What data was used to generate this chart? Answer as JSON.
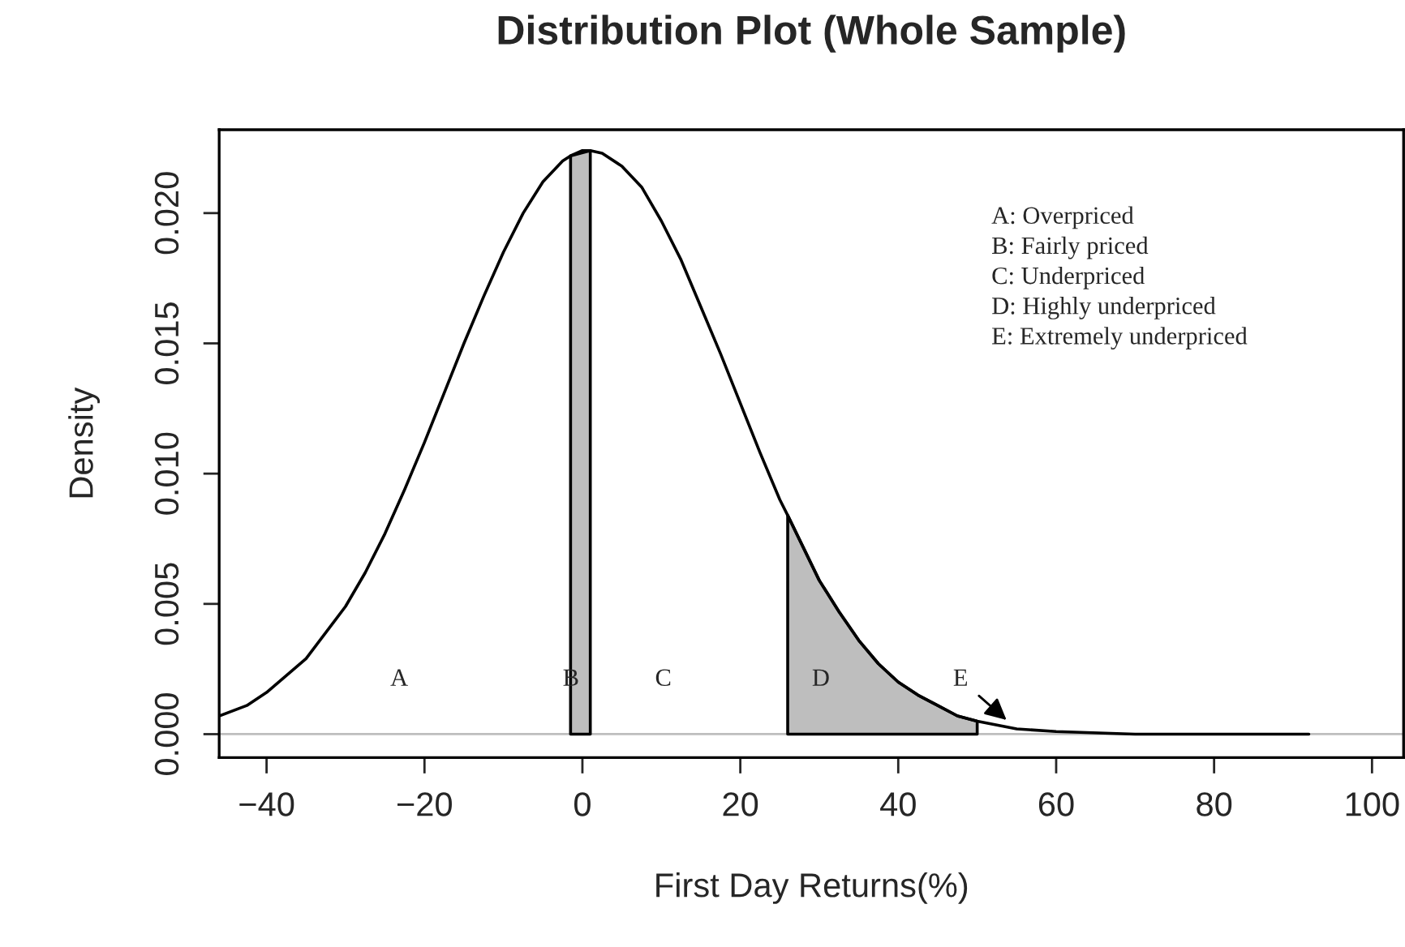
{
  "chart_data": {
    "type": "line",
    "title": "Distribution Plot (Whole Sample)",
    "xlabel": "First Day Returns(%)",
    "ylabel": "Density",
    "xlim": [
      -46,
      104
    ],
    "ylim": [
      -0.0009,
      0.0232
    ],
    "xticks": [
      {
        "value": -40,
        "label": "−40"
      },
      {
        "value": -20,
        "label": "−20"
      },
      0,
      20,
      40,
      60,
      80,
      100
    ],
    "yticks": [
      {
        "value": 0,
        "label": "0.000"
      },
      {
        "value": 0.005,
        "label": "0.005"
      },
      {
        "value": 0.01,
        "label": "0.010"
      },
      {
        "value": 0.015,
        "label": "0.015"
      },
      {
        "value": 0.02,
        "label": "0.020"
      }
    ],
    "grid": false,
    "legend": false,
    "series": [
      {
        "color": "#000000",
        "x": [
          -46,
          -42.5,
          -40,
          -35,
          -30,
          -27.5,
          -25,
          -22.5,
          -20,
          -17.5,
          -15,
          -12.5,
          -10,
          -7.5,
          -5,
          -2.5,
          -1.5,
          0,
          1,
          2.5,
          5,
          7.5,
          10,
          12.5,
          15,
          17.5,
          20,
          22.5,
          25,
          26,
          30,
          32.5,
          35,
          37.5,
          40,
          42.5,
          45,
          47.5,
          50,
          55,
          60,
          70,
          80,
          92
        ],
        "values": [
          0.0007,
          0.0011,
          0.0016,
          0.0029,
          0.0049,
          0.0062,
          0.0077,
          0.0094,
          0.0112,
          0.0131,
          0.015,
          0.0168,
          0.0185,
          0.02,
          0.0212,
          0.022,
          0.0222,
          0.0224,
          0.0224,
          0.0223,
          0.0218,
          0.021,
          0.0197,
          0.0182,
          0.0164,
          0.0146,
          0.0127,
          0.0108,
          0.009,
          0.0084,
          0.0059,
          0.0047,
          0.0036,
          0.0027,
          0.002,
          0.0015,
          0.0011,
          0.0007,
          0.0005,
          0.0002,
          0.0001,
          0.0,
          0.0,
          0.0
        ]
      },
      {
        "type": "area",
        "color": "#bebebe",
        "x": [
          -1.5,
          1
        ],
        "values": [
          0.0222,
          0.0224
        ]
      },
      {
        "type": "area",
        "color": "#bebebe",
        "x": [
          26,
          30,
          32.5,
          35,
          37.5,
          40,
          42.5,
          45,
          47.5,
          50
        ],
        "values": [
          0.0084,
          0.0059,
          0.0047,
          0.0036,
          0.0027,
          0.002,
          0.0015,
          0.0011,
          0.0007,
          0.0005
        ]
      }
    ],
    "ref_lines": [
      {
        "axis": "y",
        "value": 0,
        "color": "#bebebe"
      }
    ],
    "annotations": [
      "A",
      "B",
      "C",
      "D",
      {
        "text": "E",
        "x": 55,
        "y": 0.0002
      },
      "A: Overpriced",
      "B: Fairly priced",
      "C: Underpriced",
      "D: Highly underpriced",
      "E: Extremely underpriced"
    ]
  }
}
